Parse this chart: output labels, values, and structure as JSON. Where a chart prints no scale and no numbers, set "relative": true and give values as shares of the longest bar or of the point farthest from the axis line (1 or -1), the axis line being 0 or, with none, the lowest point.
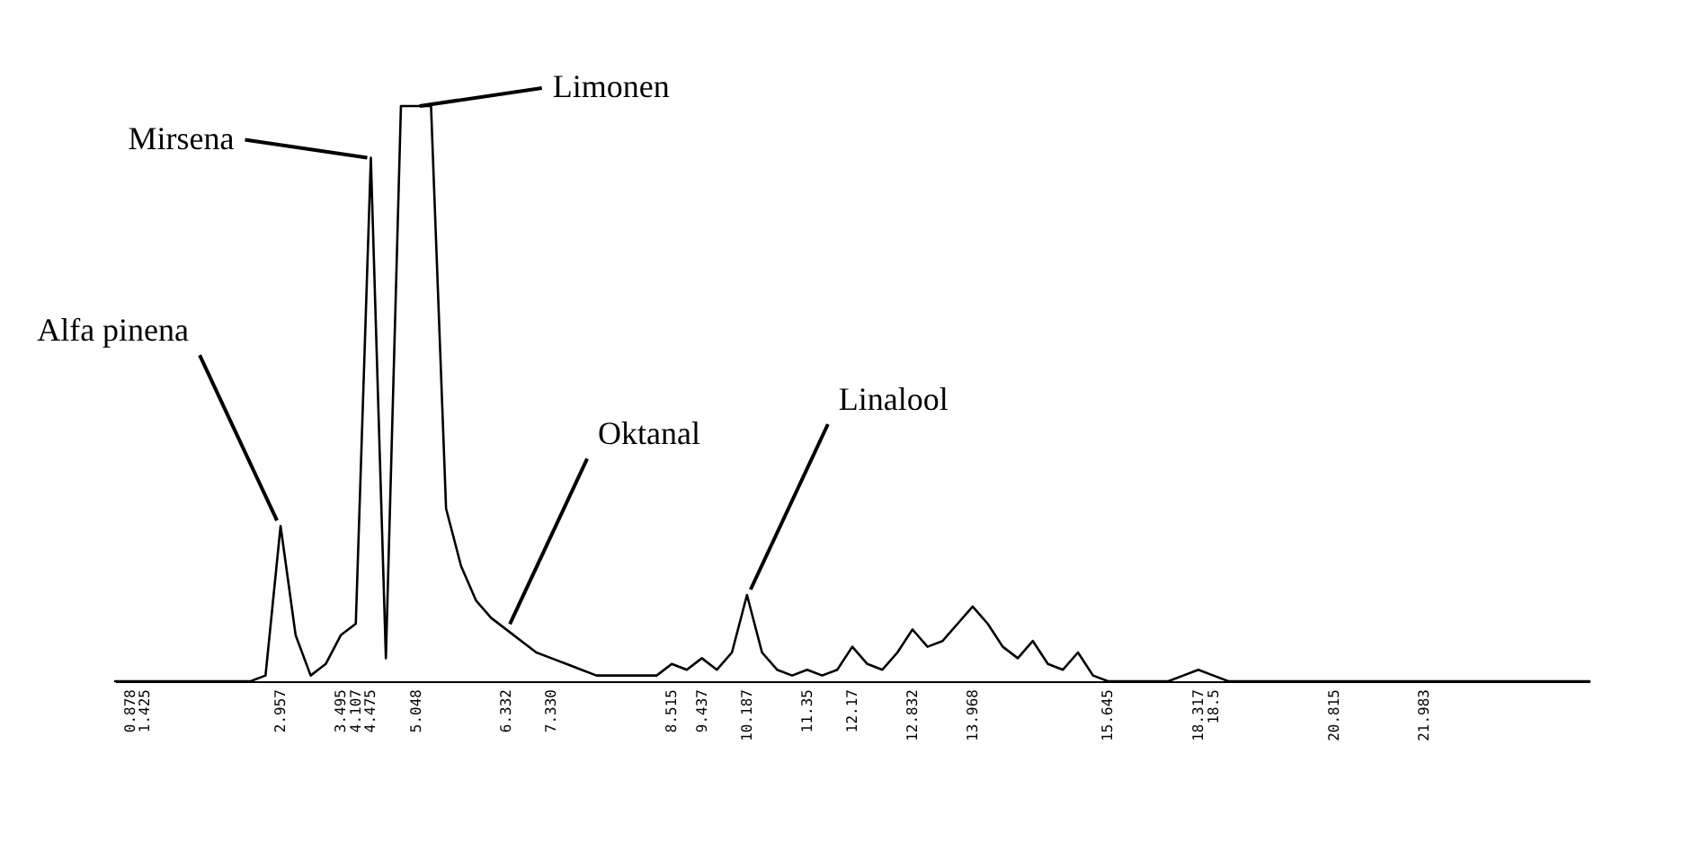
{
  "chart_data": {
    "type": "line",
    "relative": true,
    "grid": false,
    "marker": "none",
    "line_style": "solid",
    "categories": [
      null,
      "0.878",
      "1.425",
      null,
      null,
      null,
      null,
      null,
      null,
      null,
      null,
      "2.957",
      null,
      null,
      null,
      "3.495",
      "4.107",
      "4.475",
      null,
      null,
      "5.048",
      null,
      null,
      null,
      null,
      null,
      "6.332",
      null,
      null,
      "7.330",
      null,
      null,
      null,
      null,
      null,
      null,
      null,
      "8.515",
      null,
      "9.437",
      null,
      null,
      "10.187",
      null,
      null,
      null,
      "11.35",
      null,
      null,
      "12.17",
      null,
      null,
      null,
      "12.832",
      null,
      null,
      null,
      "13.968",
      null,
      null,
      null,
      null,
      null,
      null,
      null,
      null,
      "15.645",
      null,
      null,
      null,
      null,
      null,
      "18.317",
      "18.5",
      null,
      null,
      null,
      null,
      null,
      null,
      null,
      "20.815",
      null,
      null,
      null,
      null,
      null,
      "21.983",
      null,
      null,
      null,
      null,
      null,
      null,
      null,
      null,
      null,
      null,
      null
    ],
    "series": [
      {
        "color": "#000000",
        "values": [
          0,
          0,
          0,
          0,
          0,
          0,
          0,
          0,
          0,
          0,
          0.01,
          0.27,
          0.08,
          0.01,
          0.03,
          0.08,
          0.1,
          0.91,
          0.04,
          1,
          1,
          1,
          0.3,
          0.2,
          0.14,
          0.11,
          0.09,
          0.07,
          0.05,
          0.04,
          0.03,
          0.02,
          0.01,
          0.01,
          0.01,
          0.01,
          0.01,
          0.03,
          0.02,
          0.04,
          0.02,
          0.05,
          0.15,
          0.05,
          0.02,
          0.01,
          0.02,
          0.01,
          0.02,
          0.06,
          0.03,
          0.02,
          0.05,
          0.09,
          0.06,
          0.07,
          0.1,
          0.13,
          0.1,
          0.06,
          0.04,
          0.07,
          0.03,
          0.02,
          0.05,
          0.01,
          0,
          0,
          0,
          0,
          0,
          0.01,
          0.02,
          0.01,
          0,
          0,
          0,
          0,
          0,
          0,
          0,
          0,
          0,
          0,
          0,
          0,
          0,
          0,
          0,
          0,
          0,
          0,
          0,
          0,
          0,
          0,
          0,
          0,
          0
        ]
      }
    ],
    "annotations": [
      {
        "text": "Mirsena",
        "x": "4.475",
        "y": 0.91
      },
      {
        "text": "Limonen",
        "x": "5.048",
        "y": 1
      },
      {
        "text": "Alfa pinena",
        "x": "2.957",
        "y": 0.27
      },
      {
        "text": "Oktanal",
        "x": "6.332",
        "y": 0.09
      },
      {
        "text": "Linalool",
        "x": "10.187",
        "y": 0.15
      }
    ]
  }
}
